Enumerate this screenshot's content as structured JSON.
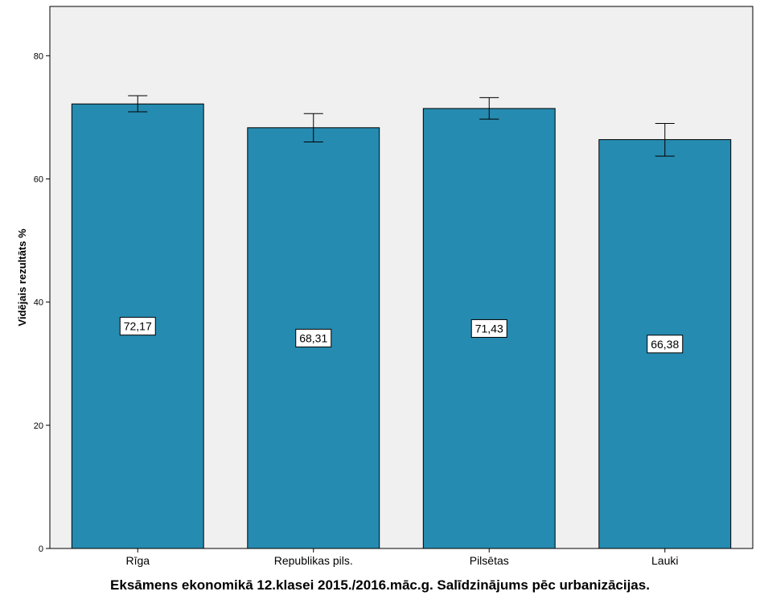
{
  "chart_data": {
    "type": "bar",
    "title": "",
    "xlabel": "Eksāmens ekonomikā 12.klasei 2015./2016.māc.g. Salīdzinājums pēc urbanizācijas.",
    "ylabel": "Vidējais rezultāts %",
    "categories": [
      "Rīga",
      "Republikas pils.",
      "Pilsētas",
      "Lauki"
    ],
    "values": [
      72.17,
      68.31,
      71.43,
      66.38
    ],
    "value_labels": [
      "72,17",
      "68,31",
      "71,43",
      "66,38"
    ],
    "error_bars": [
      {
        "low": 70.9,
        "high": 73.5
      },
      {
        "low": 66.0,
        "high": 70.6
      },
      {
        "low": 69.7,
        "high": 73.2
      },
      {
        "low": 63.7,
        "high": 69.0
      }
    ],
    "ylim": [
      0,
      88
    ],
    "yticks": [
      0,
      20,
      40,
      60,
      80
    ],
    "grid": false,
    "colors": {
      "bar": "#268bb0",
      "plot_background": "#f0f0f0",
      "axis": "#000000"
    }
  }
}
